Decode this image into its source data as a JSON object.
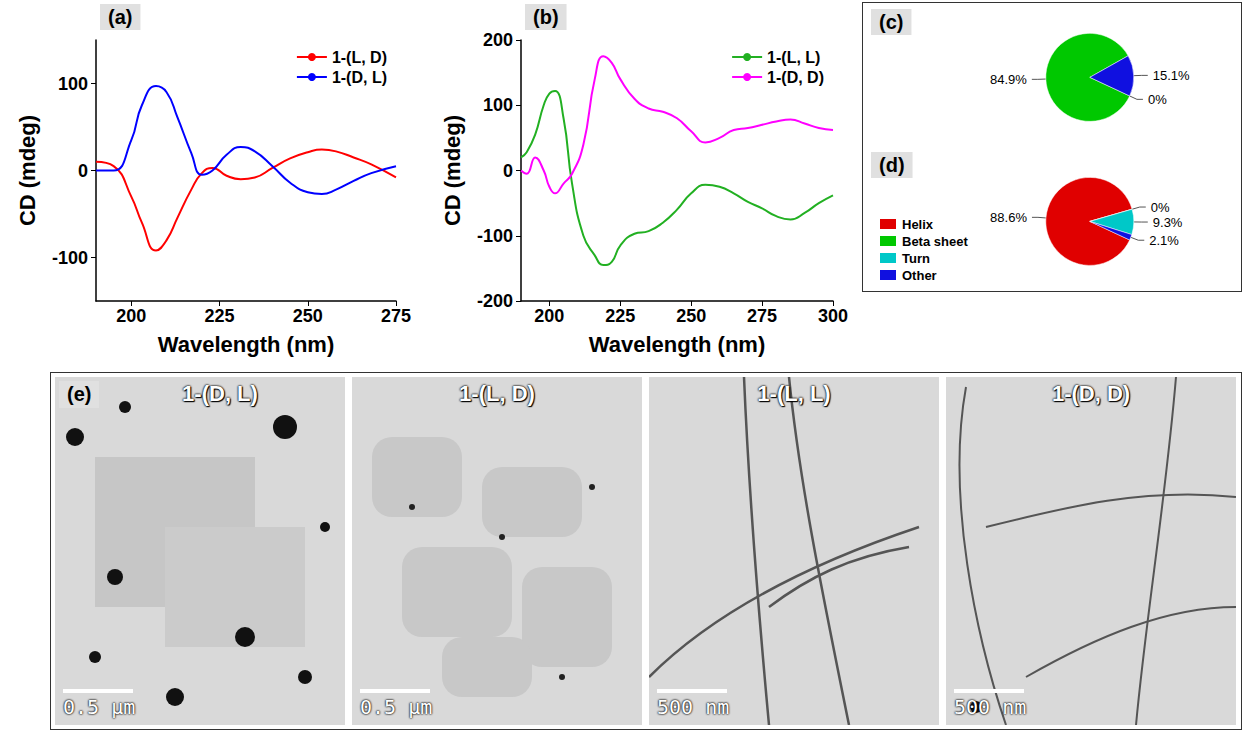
{
  "chart_data": [
    {
      "type": "line",
      "title": "(a)",
      "x_label": "Wavelength (nm)",
      "y_label": "CD (mdeg)",
      "x": [
        190,
        195,
        200,
        203,
        207,
        210,
        213,
        217,
        220,
        223,
        227,
        231,
        235,
        240,
        245,
        250,
        254,
        258,
        263,
        268,
        275
      ],
      "series": [
        {
          "name": "1-(L, D)",
          "color": "#ff0000",
          "values": [
            10,
            5,
            -30,
            -60,
            -92,
            -80,
            -55,
            -22,
            -3,
            3,
            -6,
            -10,
            -8,
            3,
            14,
            21,
            24,
            22,
            15,
            7,
            -8
          ]
        },
        {
          "name": "1-(D, L)",
          "color": "#0000ff",
          "values": [
            0,
            0,
            35,
            75,
            97,
            90,
            62,
            20,
            -5,
            0,
            18,
            27,
            22,
            5,
            -14,
            -25,
            -27,
            -22,
            -12,
            -3,
            5
          ]
        }
      ],
      "xlim": [
        190,
        275
      ],
      "xticks": [
        200,
        225,
        250,
        275
      ],
      "ylim": [
        -150,
        150
      ],
      "yticks": [
        -100,
        0,
        100
      ],
      "grid": false,
      "legend": "upper right"
    },
    {
      "type": "line",
      "title": "(b)",
      "x_label": "Wavelength (nm)",
      "y_label": "CD (mdeg)",
      "x": [
        190,
        192,
        195,
        198,
        200,
        202,
        205,
        208,
        212,
        216,
        219,
        222,
        225,
        230,
        235,
        240,
        245,
        250,
        255,
        260,
        265,
        270,
        275,
        280,
        285,
        290,
        295,
        300
      ],
      "series": [
        {
          "name": "1-(L, L)",
          "color": "#22b022",
          "values": [
            20,
            28,
            55,
            100,
            118,
            122,
            80,
            -20,
            -100,
            -130,
            -145,
            -140,
            -115,
            -97,
            -93,
            -80,
            -60,
            -35,
            -22,
            -25,
            -35,
            -48,
            -58,
            -70,
            -75,
            -65,
            -50,
            -38
          ]
        },
        {
          "name": "1-(D, D)",
          "color": "#ff00ff",
          "values": [
            0,
            -5,
            20,
            0,
            -25,
            -35,
            -20,
            -5,
            40,
            140,
            175,
            165,
            140,
            110,
            95,
            90,
            80,
            60,
            43,
            50,
            62,
            65,
            70,
            75,
            78,
            72,
            65,
            62
          ]
        }
      ],
      "xlim": [
        190,
        300
      ],
      "xticks": [
        200,
        225,
        250,
        275,
        300
      ],
      "ylim": [
        -200,
        200
      ],
      "yticks": [
        -200,
        -100,
        0,
        100,
        200
      ],
      "grid": false,
      "legend": "upper right"
    },
    {
      "type": "pie",
      "title": "(c)",
      "categories": [
        "Helix",
        "Beta sheet",
        "Other"
      ],
      "values": [
        0,
        84.9,
        15.1
      ],
      "value_labels": [
        "0%",
        "84.9%",
        "15.1%"
      ],
      "colors": [
        "#e00000",
        "#00c800",
        "#1010e0"
      ]
    },
    {
      "type": "pie",
      "title": "(d)",
      "categories": [
        "Helix",
        "Beta sheet",
        "Turn",
        "Other"
      ],
      "values": [
        88.6,
        0,
        9.3,
        2.1
      ],
      "value_labels": [
        "88.6%",
        "0%",
        "9.3%",
        "2.1%"
      ],
      "colors": [
        "#e00000",
        "#00c800",
        "#00c8c8",
        "#1010e0"
      ],
      "legend": "lower left"
    }
  ],
  "images": {
    "label": "(e)",
    "panels": [
      {
        "title": "1-(D, L)",
        "scale_bar": "0.5 μm"
      },
      {
        "title": "1-(L, D)",
        "scale_bar": "0.5 μm"
      },
      {
        "title": "1-(L, L)",
        "scale_bar": "500 nm"
      },
      {
        "title": "1-(D, D)",
        "scale_bar": "500 nm"
      }
    ]
  }
}
